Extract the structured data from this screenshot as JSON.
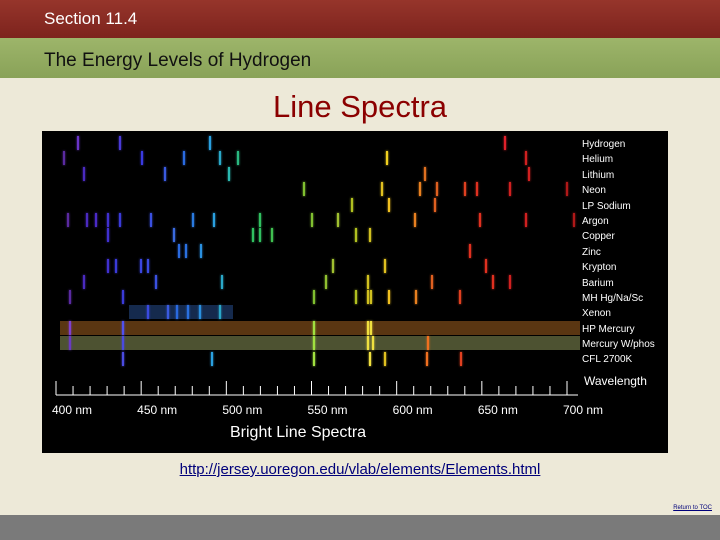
{
  "header": {
    "section": "Section 11.4",
    "chapter_title": "The Energy Levels of Hydrogen"
  },
  "slide_title": "Line Spectra",
  "spectra": [
    {
      "name": "Hydrogen",
      "lines": [
        {
          "nm": 410,
          "c": "#6a34c8"
        },
        {
          "nm": 434,
          "c": "#4a3ad8"
        },
        {
          "nm": 486,
          "c": "#2aa0e0"
        },
        {
          "nm": 656,
          "c": "#e0202a"
        }
      ]
    },
    {
      "name": "Helium",
      "lines": [
        {
          "nm": 402,
          "c": "#5a2aa0"
        },
        {
          "nm": 447,
          "c": "#3a3ae0"
        },
        {
          "nm": 471,
          "c": "#2a6ae0"
        },
        {
          "nm": 492,
          "c": "#2aa8c8"
        },
        {
          "nm": 502,
          "c": "#2ab880"
        },
        {
          "nm": 588,
          "c": "#f0d020"
        },
        {
          "nm": 668,
          "c": "#d02020"
        }
      ]
    },
    {
      "name": "Lithium",
      "lines": [
        {
          "nm": 413,
          "c": "#4a2ac0"
        },
        {
          "nm": 460,
          "c": "#3a5ae0"
        },
        {
          "nm": 497,
          "c": "#2ab8b0"
        },
        {
          "nm": 610,
          "c": "#e07020"
        },
        {
          "nm": 670,
          "c": "#d02020"
        }
      ]
    },
    {
      "name": "Neon",
      "lines": [
        {
          "nm": 540,
          "c": "#80c030"
        },
        {
          "nm": 585,
          "c": "#e0c020"
        },
        {
          "nm": 607,
          "c": "#e88020"
        },
        {
          "nm": 617,
          "c": "#e06020"
        },
        {
          "nm": 633,
          "c": "#e04020"
        },
        {
          "nm": 640,
          "c": "#e03020"
        },
        {
          "nm": 659,
          "c": "#d02020"
        },
        {
          "nm": 692,
          "c": "#b01818"
        }
      ]
    },
    {
      "name": "LP Sodium",
      "lines": [
        {
          "nm": 568,
          "c": "#b0c020"
        },
        {
          "nm": 589,
          "c": "#f0c020"
        },
        {
          "nm": 616,
          "c": "#e06020"
        }
      ]
    },
    {
      "name": "Argon",
      "lines": [
        {
          "nm": 404,
          "c": "#5a2aa0"
        },
        {
          "nm": 415,
          "c": "#4a2ac0"
        },
        {
          "nm": 420,
          "c": "#4a2ac8"
        },
        {
          "nm": 427,
          "c": "#4030d0"
        },
        {
          "nm": 434,
          "c": "#3a3ad8"
        },
        {
          "nm": 452,
          "c": "#3a50e0"
        },
        {
          "nm": 476,
          "c": "#2a7ae0"
        },
        {
          "nm": 488,
          "c": "#2aa0e0"
        },
        {
          "nm": 515,
          "c": "#30c060"
        },
        {
          "nm": 545,
          "c": "#80c030"
        },
        {
          "nm": 560,
          "c": "#a0c030"
        },
        {
          "nm": 604,
          "c": "#e88020"
        },
        {
          "nm": 642,
          "c": "#e03020"
        },
        {
          "nm": 668,
          "c": "#d02020"
        },
        {
          "nm": 696,
          "c": "#b01818"
        }
      ]
    },
    {
      "name": "Copper",
      "lines": [
        {
          "nm": 427,
          "c": "#4030d0"
        },
        {
          "nm": 465,
          "c": "#3a6ae0"
        },
        {
          "nm": 511,
          "c": "#30c060"
        },
        {
          "nm": 515,
          "c": "#30c060"
        },
        {
          "nm": 522,
          "c": "#40c050"
        },
        {
          "nm": 570,
          "c": "#b0c020"
        },
        {
          "nm": 578,
          "c": "#d0c020"
        }
      ]
    },
    {
      "name": "Zinc",
      "lines": [
        {
          "nm": 468,
          "c": "#2a6ae0"
        },
        {
          "nm": 472,
          "c": "#2a70e0"
        },
        {
          "nm": 481,
          "c": "#2a90e0"
        },
        {
          "nm": 636,
          "c": "#e03020"
        }
      ]
    },
    {
      "name": "Krypton",
      "lines": [
        {
          "nm": 427,
          "c": "#4030d0"
        },
        {
          "nm": 432,
          "c": "#3a3ad8"
        },
        {
          "nm": 446,
          "c": "#3a46e0"
        },
        {
          "nm": 450,
          "c": "#3a4ae0"
        },
        {
          "nm": 557,
          "c": "#a0c030"
        },
        {
          "nm": 587,
          "c": "#e0c020"
        },
        {
          "nm": 645,
          "c": "#e03020"
        }
      ]
    },
    {
      "name": "Barium",
      "lines": [
        {
          "nm": 413,
          "c": "#4a2ac0"
        },
        {
          "nm": 455,
          "c": "#3a50e0"
        },
        {
          "nm": 493,
          "c": "#2aa8c8"
        },
        {
          "nm": 553,
          "c": "#90c030"
        },
        {
          "nm": 577,
          "c": "#d0c020"
        },
        {
          "nm": 614,
          "c": "#e06020"
        },
        {
          "nm": 649,
          "c": "#e03020"
        },
        {
          "nm": 659,
          "c": "#d02020"
        }
      ]
    },
    {
      "name": "MH  Hg/Na/Sc",
      "lines": [
        {
          "nm": 405,
          "c": "#5a2aa0"
        },
        {
          "nm": 436,
          "c": "#3a3ad8"
        },
        {
          "nm": 546,
          "c": "#80c030"
        },
        {
          "nm": 570,
          "c": "#b0c020"
        },
        {
          "nm": 577,
          "c": "#d0c020"
        },
        {
          "nm": 579,
          "c": "#d0c020"
        },
        {
          "nm": 589,
          "c": "#f0c020"
        },
        {
          "nm": 605,
          "c": "#e88020"
        },
        {
          "nm": 630,
          "c": "#e04020"
        }
      ]
    },
    {
      "name": "Xenon",
      "lines": [
        {
          "nm": 450,
          "c": "#3a4ae0"
        },
        {
          "nm": 462,
          "c": "#3a5ae0"
        },
        {
          "nm": 467,
          "c": "#2a6ae0"
        },
        {
          "nm": 473,
          "c": "#2a70e0"
        },
        {
          "nm": 480,
          "c": "#2a90e0"
        },
        {
          "nm": 492,
          "c": "#2aa8c8"
        }
      ]
    },
    {
      "name": "HP Mercury",
      "lines": [
        {
          "nm": 405,
          "c": "#8040d0"
        },
        {
          "nm": 436,
          "c": "#5050f0"
        },
        {
          "nm": 546,
          "c": "#a0e040"
        },
        {
          "nm": 577,
          "c": "#f0e040"
        },
        {
          "nm": 579,
          "c": "#f0e040"
        }
      ]
    },
    {
      "name": "Mercury W/phos",
      "lines": [
        {
          "nm": 405,
          "c": "#6a3ac0"
        },
        {
          "nm": 436,
          "c": "#4a4ae0"
        },
        {
          "nm": 546,
          "c": "#a0e040"
        },
        {
          "nm": 577,
          "c": "#f0e040"
        },
        {
          "nm": 580,
          "c": "#f0e040"
        },
        {
          "nm": 612,
          "c": "#f07020"
        }
      ]
    },
    {
      "name": "CFL 2700K",
      "lines": [
        {
          "nm": 436,
          "c": "#4a4ae0"
        },
        {
          "nm": 487,
          "c": "#2aa0e0"
        },
        {
          "nm": 546,
          "c": "#a0e040"
        },
        {
          "nm": 578,
          "c": "#f0e040"
        },
        {
          "nm": 587,
          "c": "#e0c020"
        },
        {
          "nm": 611,
          "c": "#f07020"
        },
        {
          "nm": 631,
          "c": "#e04020"
        }
      ]
    }
  ],
  "continuum_rows": [
    {
      "name": "HP Mercury",
      "from": 400,
      "to": 700,
      "color": "rgba(200,120,40,0.45)"
    },
    {
      "name": "Mercury W/phos",
      "from": 400,
      "to": 700,
      "color": "rgba(140,150,90,0.55)"
    },
    {
      "name": "Xenon",
      "from": 440,
      "to": 500,
      "color": "rgba(60,120,220,0.35)"
    }
  ],
  "ruler": {
    "wavelength_label": "Wavelength",
    "tick_labels": [
      "400 nm",
      "450 nm",
      "500 nm",
      "550 nm",
      "600 nm",
      "650 nm",
      "700 nm"
    ],
    "tick_values": [
      400,
      450,
      500,
      550,
      600,
      650,
      700
    ],
    "title": "Bright Line Spectra"
  },
  "url": "http://jersey.uoregon.edu/vlab/elements/Elements.html",
  "return_link": "Return to TOC"
}
